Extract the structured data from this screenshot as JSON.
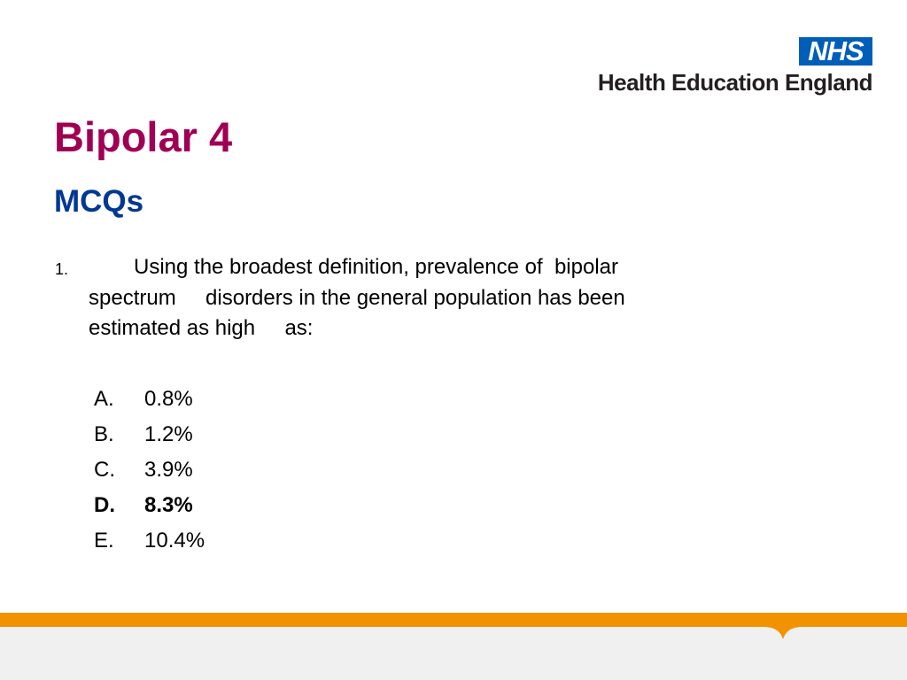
{
  "logo": {
    "badge": "NHS",
    "organisation": "Health Education England"
  },
  "title": "Bipolar 4",
  "subtitle": "MCQs",
  "question": {
    "number": "1.",
    "lines": [
      "Using the broadest definition, prevalence of  bipolar",
      "spectrum     disorders in the general population has been",
      "estimated as high     as:"
    ]
  },
  "options": [
    {
      "letter": "A.",
      "text": "0.8%",
      "bold": false
    },
    {
      "letter": "B.",
      "text": "1.2%",
      "bold": false
    },
    {
      "letter": "C.",
      "text": "3.9%",
      "bold": false
    },
    {
      "letter": "D.",
      "text": "8.3%",
      "bold": true
    },
    {
      "letter": "E.",
      "text": "10.4%",
      "bold": false
    }
  ]
}
